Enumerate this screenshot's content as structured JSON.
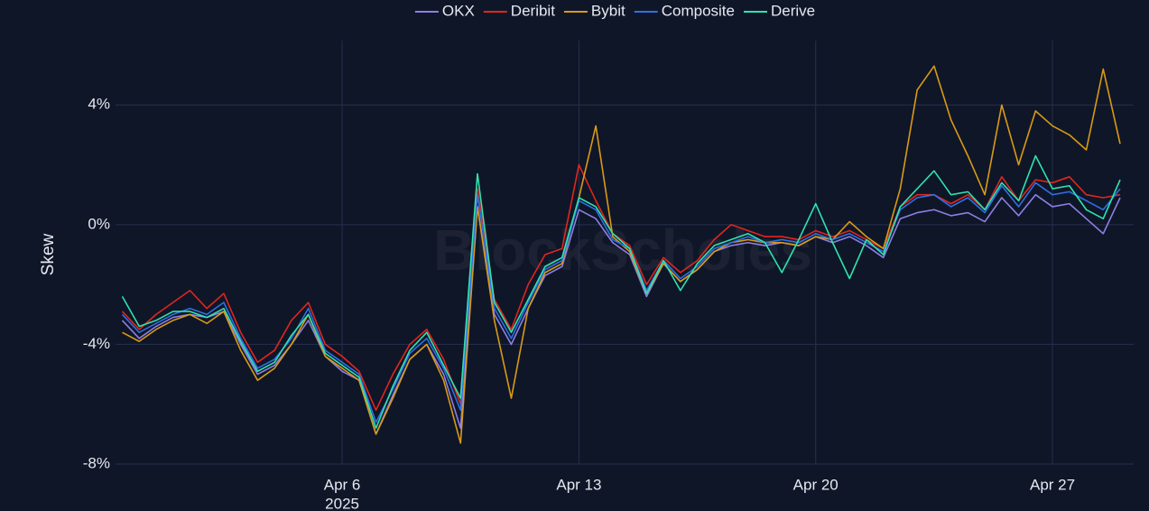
{
  "chart_data": {
    "type": "line",
    "y_label": "Skew",
    "watermark": "BlockScholes",
    "x": [
      89.5,
      90,
      90.5,
      91,
      91.5,
      92,
      92.5,
      93,
      93.5,
      94,
      94.5,
      95,
      95.5,
      96,
      96.5,
      97,
      97.5,
      98,
      98.5,
      99,
      99.5,
      100,
      100.5,
      101,
      101.5,
      102,
      102.5,
      103,
      103.5,
      104,
      104.5,
      105,
      105.5,
      106,
      106.5,
      107,
      107.5,
      108,
      108.5,
      109,
      109.5,
      110,
      110.5,
      111,
      111.5,
      112,
      112.5,
      113,
      113.5,
      114,
      114.5,
      115,
      115.5,
      116,
      116.5,
      117,
      117.5,
      118,
      118.5,
      119
    ],
    "xlim": [
      89.3,
      119.4
    ],
    "xticks": [
      {
        "value": 96,
        "label": "Apr 6",
        "sublabel": "2025"
      },
      {
        "value": 103,
        "label": "Apr 13"
      },
      {
        "value": 110,
        "label": "Apr 20"
      },
      {
        "value": 117,
        "label": "Apr 27"
      }
    ],
    "ylim": [
      -8,
      6.15
    ],
    "yticks": [
      {
        "value": -8,
        "label": "-8%"
      },
      {
        "value": -4,
        "label": "-4%"
      },
      {
        "value": 0,
        "label": "0%"
      },
      {
        "value": 4,
        "label": "4%"
      }
    ],
    "grid": true,
    "legend": "top",
    "series": [
      {
        "name": "OKX",
        "color": "#8d7fe3",
        "values": [
          -3.2,
          -3.8,
          -3.4,
          -3.1,
          -3.0,
          -3.1,
          -2.9,
          -4.0,
          -5.0,
          -4.7,
          -4.0,
          -3.2,
          -4.4,
          -4.9,
          -5.2,
          -7.0,
          -5.7,
          -4.5,
          -4.0,
          -5.0,
          -6.8,
          0.6,
          -3.0,
          -4.0,
          -2.8,
          -1.7,
          -1.4,
          0.5,
          0.2,
          -0.6,
          -1.0,
          -2.4,
          -1.3,
          -1.9,
          -1.5,
          -0.9,
          -0.7,
          -0.6,
          -0.7,
          -0.6,
          -0.7,
          -0.4,
          -0.6,
          -0.4,
          -0.7,
          -1.1,
          0.2,
          0.4,
          0.5,
          0.3,
          0.4,
          0.1,
          0.9,
          0.3,
          1.0,
          0.6,
          0.7,
          0.2,
          -0.3,
          0.9
        ]
      },
      {
        "name": "Deribit",
        "color": "#e0261d",
        "values": [
          -2.9,
          -3.5,
          -3.0,
          -2.6,
          -2.2,
          -2.8,
          -2.3,
          -3.6,
          -4.6,
          -4.2,
          -3.2,
          -2.6,
          -4.0,
          -4.4,
          -4.9,
          -6.2,
          -5.0,
          -4.0,
          -3.5,
          -4.5,
          -6.0,
          1.2,
          -2.5,
          -3.5,
          -2.0,
          -1.0,
          -0.8,
          2.0,
          0.8,
          -0.3,
          -0.7,
          -2.0,
          -1.1,
          -1.6,
          -1.2,
          -0.5,
          0.0,
          -0.2,
          -0.4,
          -0.4,
          -0.5,
          -0.2,
          -0.4,
          -0.2,
          -0.5,
          -0.8,
          0.6,
          1.0,
          1.0,
          0.7,
          1.0,
          0.5,
          1.6,
          0.8,
          1.5,
          1.4,
          1.6,
          1.0,
          0.9,
          1.0
        ]
      },
      {
        "name": "Bybit",
        "color": "#d99a15",
        "values": [
          -3.6,
          -3.9,
          -3.5,
          -3.2,
          -3.0,
          -3.3,
          -2.9,
          -4.2,
          -5.2,
          -4.8,
          -4.0,
          -3.0,
          -4.4,
          -4.8,
          -5.2,
          -7.0,
          -5.8,
          -4.5,
          -4.0,
          -5.2,
          -7.3,
          0.6,
          -3.2,
          -5.8,
          -2.8,
          -1.6,
          -1.3,
          0.9,
          3.3,
          -0.4,
          -0.9,
          -2.3,
          -1.3,
          -1.9,
          -1.5,
          -0.9,
          -0.6,
          -0.5,
          -0.6,
          -0.6,
          -0.7,
          -0.4,
          -0.5,
          0.1,
          -0.4,
          -0.8,
          1.2,
          4.5,
          5.3,
          3.5,
          2.3,
          1.0,
          4.0,
          2.0,
          3.8,
          3.3,
          3.0,
          2.5,
          5.2,
          2.7
        ]
      },
      {
        "name": "Composite",
        "color": "#2f6fe4",
        "values": [
          -3.0,
          -3.6,
          -3.3,
          -3.0,
          -2.8,
          -3.0,
          -2.6,
          -3.8,
          -4.8,
          -4.5,
          -3.8,
          -2.8,
          -4.2,
          -4.6,
          -5.0,
          -6.6,
          -5.5,
          -4.3,
          -3.8,
          -4.8,
          -6.2,
          1.0,
          -2.8,
          -3.8,
          -2.6,
          -1.5,
          -1.2,
          0.8,
          0.5,
          -0.5,
          -0.8,
          -2.2,
          -1.2,
          -1.8,
          -1.4,
          -0.8,
          -0.6,
          -0.4,
          -0.6,
          -0.5,
          -0.6,
          -0.3,
          -0.5,
          -0.3,
          -0.6,
          -0.9,
          0.5,
          0.9,
          1.0,
          0.6,
          0.9,
          0.4,
          1.3,
          0.6,
          1.4,
          1.0,
          1.1,
          0.8,
          0.5,
          1.2
        ]
      },
      {
        "name": "Derive",
        "color": "#2fe3ad",
        "values": [
          -2.4,
          -3.4,
          -3.2,
          -2.9,
          -2.9,
          -3.1,
          -2.8,
          -3.9,
          -4.9,
          -4.6,
          -3.7,
          -3.0,
          -4.3,
          -4.7,
          -5.1,
          -6.8,
          -5.4,
          -4.2,
          -3.6,
          -4.7,
          -5.8,
          1.7,
          -2.6,
          -3.6,
          -2.5,
          -1.4,
          -1.1,
          0.9,
          0.6,
          -0.3,
          -0.8,
          -2.3,
          -1.2,
          -2.2,
          -1.3,
          -0.7,
          -0.5,
          -0.3,
          -0.6,
          -1.6,
          -0.5,
          0.7,
          -0.6,
          -1.8,
          -0.5,
          -1.0,
          0.6,
          1.2,
          1.8,
          1.0,
          1.1,
          0.5,
          1.4,
          0.8,
          2.3,
          1.2,
          1.3,
          0.5,
          0.2,
          1.5
        ]
      }
    ]
  }
}
